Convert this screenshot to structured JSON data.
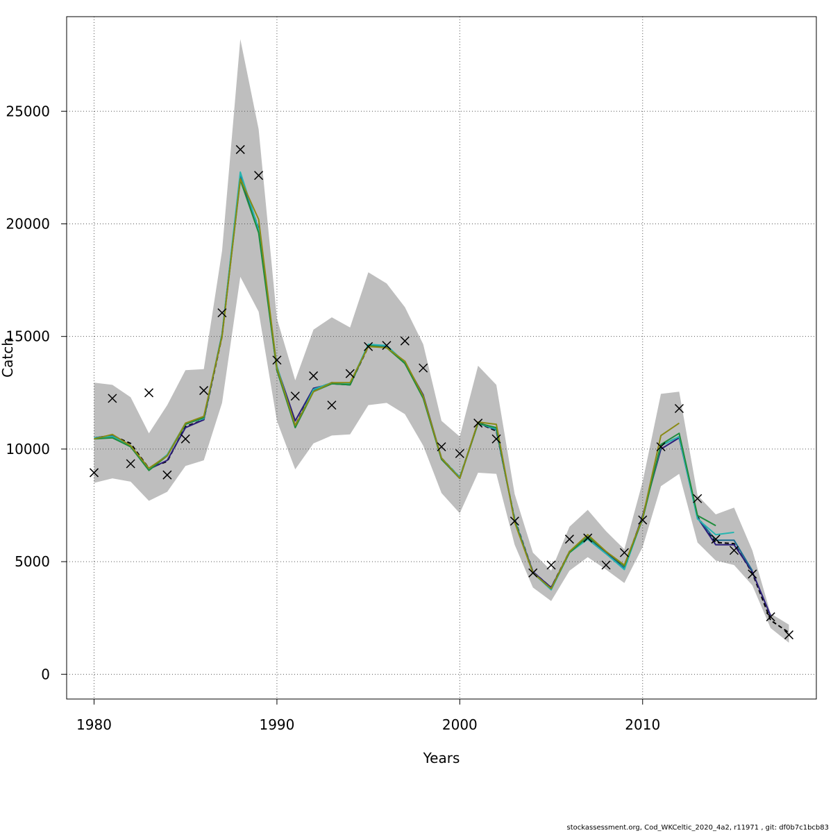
{
  "footer": "stockassessment.org, Cod_WKCeltic_2020_4a2, r11971 , git: df0b7c1bcb83",
  "chart_data": {
    "type": "line",
    "title": "",
    "xlabel": "Years",
    "ylabel": "Catch",
    "xlim": [
      1978.5,
      2019.5
    ],
    "ylim": [
      -1100,
      29200
    ],
    "xticks": [
      1980,
      1990,
      2000,
      2010
    ],
    "yticks": [
      0,
      5000,
      10000,
      15000,
      20000,
      25000
    ],
    "grid": true,
    "legend": "none",
    "band_color": "#bebebe",
    "years": [
      1980,
      1981,
      1982,
      1983,
      1984,
      1985,
      1986,
      1987,
      1988,
      1989,
      1990,
      1991,
      1992,
      1993,
      1994,
      1995,
      1996,
      1997,
      1998,
      1999,
      2000,
      2001,
      2002,
      2003,
      2004,
      2005,
      2006,
      2007,
      2008,
      2009,
      2010,
      2011,
      2012,
      2013,
      2014,
      2015,
      2016,
      2017,
      2018
    ],
    "band": {
      "upper": [
        12950,
        12850,
        12300,
        10700,
        11950,
        13500,
        13550,
        18800,
        28200,
        24200,
        15800,
        13050,
        15300,
        15850,
        15400,
        17850,
        17350,
        16300,
        14650,
        11250,
        10550,
        13700,
        12850,
        8000,
        5400,
        4600,
        6550,
        7300,
        6350,
        5550,
        8550,
        12450,
        12550,
        7950,
        7100,
        7400,
        5500,
        2700,
        2200
      ],
      "lower": [
        8500,
        8700,
        8550,
        7700,
        8100,
        9250,
        9500,
        12050,
        17650,
        16100,
        11250,
        9100,
        10250,
        10600,
        10650,
        11950,
        12050,
        11550,
        10150,
        8050,
        7150,
        8950,
        8900,
        5750,
        3850,
        3250,
        4600,
        5200,
        4650,
        4050,
        5650,
        8350,
        8900,
        5850,
        5050,
        4850,
        3950,
        2050,
        1400
      ]
    },
    "series": [
      {
        "color": "#000000",
        "dash": "6,4",
        "values": [
          10500,
          10600,
          10250,
          9150,
          9450,
          11000,
          11300,
          15000,
          22100,
          19800,
          13500,
          11050,
          12650,
          12950,
          12850,
          14550,
          14550,
          13800,
          12300,
          9600,
          8750,
          11150,
          10800,
          6900,
          4550,
          3850,
          5450,
          6100,
          5400,
          4800,
          7000,
          10150,
          10550,
          7000,
          5850,
          5800,
          4500,
          2400,
          1850
        ]
      },
      {
        "color": "#2b1d7a",
        "values": [
          10500,
          10600,
          10150,
          9100,
          9500,
          10950,
          11300,
          15100,
          22150,
          19700,
          13650,
          11250,
          12700,
          12900,
          12850,
          14600,
          14550,
          13850,
          12400,
          9600,
          8700,
          11200,
          10850,
          6850,
          4550,
          3850,
          5400,
          6100,
          5400,
          4700,
          7050,
          10000,
          10500,
          6950,
          5750,
          5750,
          4550,
          2600
        ]
      },
      {
        "color": "#1c6b92",
        "values": [
          10500,
          10600,
          10100,
          9100,
          9700,
          11100,
          11400,
          15050,
          22200,
          19750,
          13600,
          11000,
          12600,
          12900,
          12850,
          14600,
          14550,
          13800,
          12300,
          9550,
          8700,
          11150,
          10850,
          6850,
          4500,
          3800,
          5450,
          6000,
          5350,
          4700,
          7000,
          10150,
          10550,
          6950,
          5950,
          5950,
          4600
        ]
      },
      {
        "color": "#26b5b0",
        "values": [
          10500,
          10550,
          10150,
          9100,
          9750,
          11150,
          11350,
          15100,
          22300,
          19750,
          13700,
          11000,
          12650,
          12950,
          12900,
          14650,
          14600,
          13850,
          12350,
          9600,
          8750,
          11150,
          10900,
          6850,
          4500,
          3750,
          5400,
          6000,
          5350,
          4650,
          6950,
          10150,
          10550,
          6900,
          6200,
          6300
        ]
      },
      {
        "color": "#1e8c3c",
        "values": [
          10450,
          10500,
          10100,
          9050,
          9700,
          11100,
          11400,
          15050,
          21950,
          19600,
          13500,
          10950,
          12550,
          12900,
          12850,
          14600,
          14500,
          13800,
          12250,
          9550,
          8700,
          11150,
          10950,
          6800,
          4500,
          3800,
          5400,
          6100,
          5450,
          4800,
          6900,
          10200,
          10700,
          7050,
          6600
        ]
      },
      {
        "color": "#8a8a14",
        "values": [
          10450,
          10650,
          10150,
          9150,
          9700,
          11150,
          11450,
          15000,
          22000,
          20200,
          13600,
          11050,
          12550,
          12950,
          12950,
          14550,
          14500,
          13900,
          12350,
          9600,
          8700,
          11200,
          11100,
          6750,
          4500,
          3800,
          5450,
          6200,
          5450,
          4850,
          6950,
          10600,
          11150
        ]
      }
    ],
    "observed": [
      8950,
      12250,
      9350,
      12500,
      8850,
      10450,
      12600,
      16050,
      23300,
      22150,
      13950,
      12350,
      13250,
      11950,
      13350,
      14550,
      14600,
      14800,
      13600,
      10100,
      9800,
      11150,
      10450,
      6800,
      4500,
      4850,
      6000,
      6050,
      4850,
      5400,
      6850,
      10100,
      11800,
      7800,
      6000,
      5500,
      4450,
      2550,
      1750
    ]
  }
}
